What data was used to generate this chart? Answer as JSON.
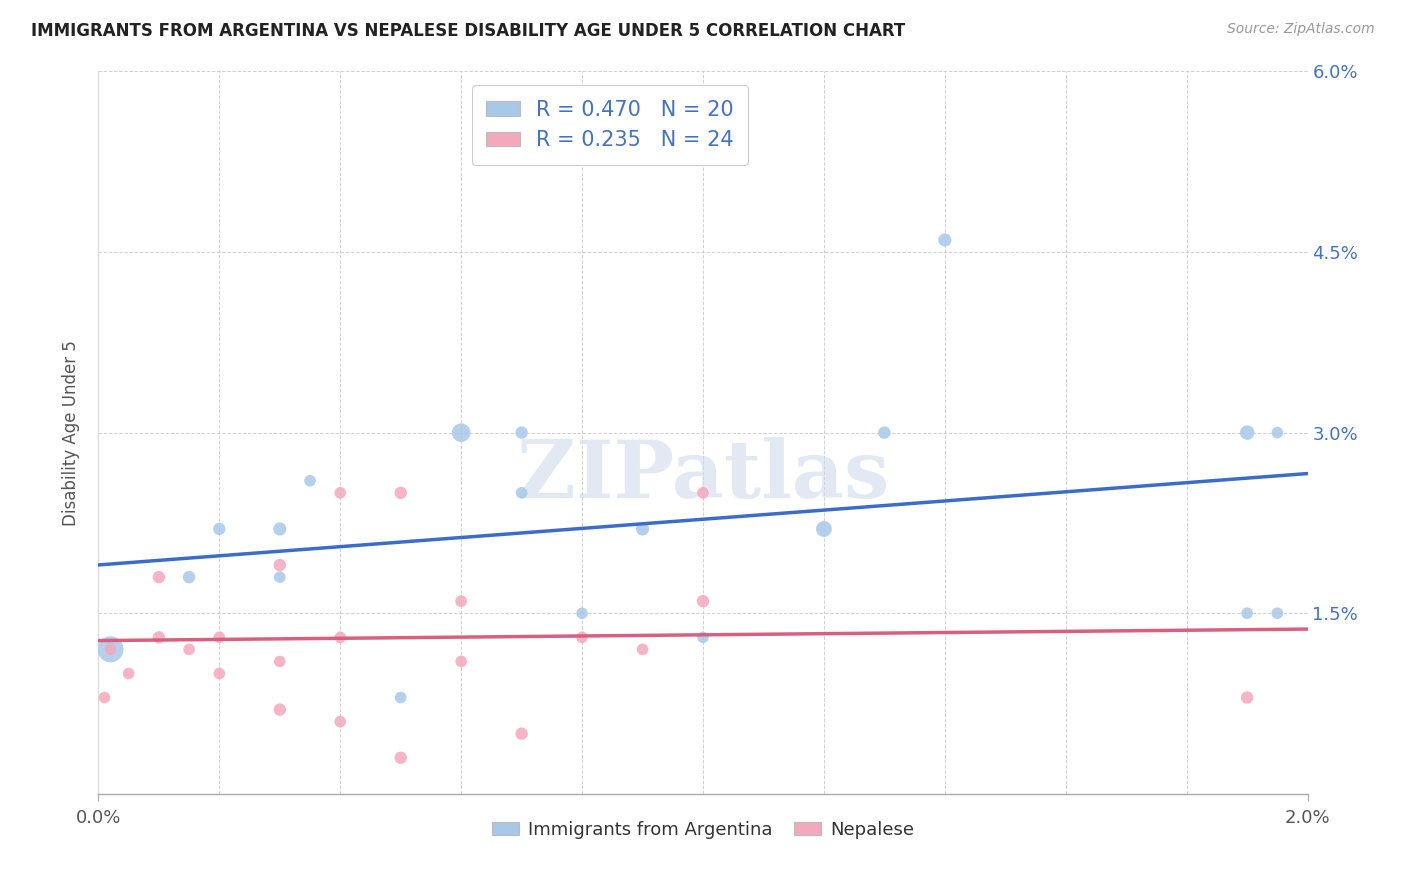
{
  "title": "IMMIGRANTS FROM ARGENTINA VS NEPALESE DISABILITY AGE UNDER 5 CORRELATION CHART",
  "source": "Source: ZipAtlas.com",
  "ylabel": "Disability Age Under 5",
  "xmin": 0.0,
  "xmax": 0.02,
  "ymin": 0.0,
  "ymax": 0.06,
  "argentina_color": "#a8c8e8",
  "argentina_line_color": "#3b6cc9",
  "nepalese_color": "#f4a8be",
  "nepalese_line_color": "#d95f7f",
  "watermark_color": "#ccd8ea",
  "argentina_x": [
    0.0002,
    0.0015,
    0.002,
    0.003,
    0.003,
    0.0035,
    0.005,
    0.006,
    0.007,
    0.007,
    0.008,
    0.009,
    0.01,
    0.012,
    0.013,
    0.014,
    0.019,
    0.019,
    0.0195,
    0.0195
  ],
  "argentina_y": [
    0.012,
    0.018,
    0.022,
    0.022,
    0.018,
    0.026,
    0.008,
    0.03,
    0.025,
    0.03,
    0.015,
    0.022,
    0.013,
    0.022,
    0.03,
    0.046,
    0.03,
    0.015,
    0.03,
    0.015
  ],
  "argentina_size": [
    350,
    80,
    80,
    90,
    70,
    70,
    70,
    180,
    70,
    80,
    70,
    90,
    70,
    130,
    80,
    90,
    110,
    70,
    70,
    70
  ],
  "nepalese_x": [
    0.0001,
    0.0002,
    0.0005,
    0.001,
    0.001,
    0.0015,
    0.002,
    0.002,
    0.003,
    0.003,
    0.003,
    0.004,
    0.004,
    0.004,
    0.005,
    0.005,
    0.006,
    0.006,
    0.007,
    0.008,
    0.009,
    0.01,
    0.01,
    0.019
  ],
  "nepalese_y": [
    0.008,
    0.012,
    0.01,
    0.013,
    0.018,
    0.012,
    0.01,
    0.013,
    0.007,
    0.011,
    0.019,
    0.006,
    0.013,
    0.025,
    0.003,
    0.025,
    0.011,
    0.016,
    0.005,
    0.013,
    0.012,
    0.025,
    0.016,
    0.008
  ],
  "nepalese_size": [
    70,
    70,
    70,
    80,
    80,
    70,
    70,
    70,
    80,
    70,
    80,
    70,
    70,
    70,
    80,
    80,
    70,
    70,
    80,
    70,
    70,
    70,
    80,
    80
  ]
}
